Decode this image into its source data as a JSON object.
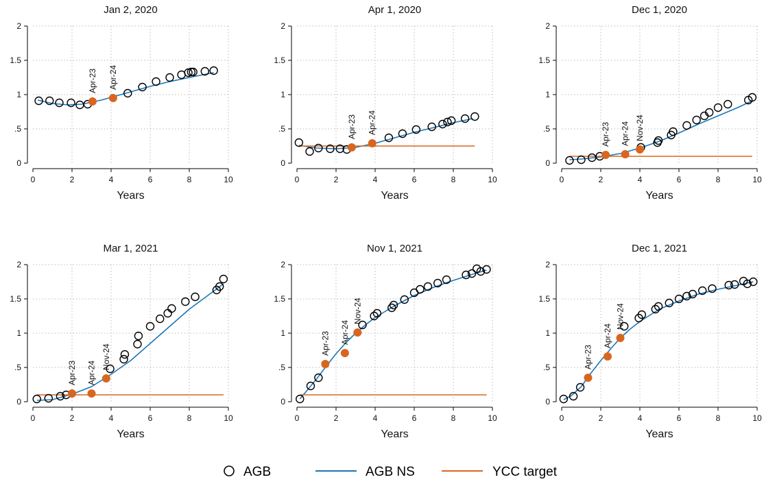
{
  "colors": {
    "agb": "#000000",
    "ns": "#1a76b7",
    "ycc": "#d9661f",
    "ycc_dot": "#d9661f",
    "grid": "#b9b9b9"
  },
  "legend": {
    "placement": "bottom-center",
    "items": [
      {
        "key": "agb",
        "label": "AGB",
        "marker": "hollow-circle"
      },
      {
        "key": "ns",
        "label": "AGB NS",
        "marker": "line"
      },
      {
        "key": "ycc",
        "label": "YCC target",
        "marker": "line"
      }
    ]
  },
  "chart_data": [
    {
      "type": "scatter",
      "title": "Jan 2, 2020",
      "xlabel": "Years",
      "ylabel": "",
      "xlim": [
        0,
        10
      ],
      "ylim": [
        0,
        2
      ],
      "xticks": [
        "0",
        "2",
        "4",
        "6",
        "8",
        "10"
      ],
      "yticks": [
        "0",
        ".5",
        "1",
        "1.5",
        "2"
      ],
      "grid": true,
      "series": [
        {
          "name": "AGB",
          "kind": "hollow-circle",
          "x": [
            0.3,
            0.85,
            1.35,
            1.95,
            2.4,
            2.8,
            4.85,
            5.6,
            6.3,
            7.0,
            7.6,
            7.95,
            8.1,
            8.2,
            8.8,
            9.25
          ],
          "y": [
            0.91,
            0.91,
            0.88,
            0.88,
            0.85,
            0.86,
            1.02,
            1.11,
            1.19,
            1.25,
            1.29,
            1.32,
            1.33,
            1.33,
            1.34,
            1.35
          ]
        },
        {
          "name": "AGB NS",
          "kind": "line",
          "x": [
            0.25,
            1.0,
            1.8,
            2.5,
            3.0,
            3.5,
            4.0,
            5.0,
            6.0,
            7.0,
            8.0,
            9.25
          ],
          "y": [
            0.92,
            0.87,
            0.85,
            0.86,
            0.89,
            0.92,
            0.96,
            1.04,
            1.12,
            1.19,
            1.25,
            1.32
          ]
        },
        {
          "name": "YCC target",
          "kind": "line",
          "x": [],
          "y": []
        },
        {
          "kind": "orange-dot",
          "x": [
            3.05,
            4.1
          ],
          "y": [
            0.9,
            0.95
          ]
        }
      ],
      "annotations": [
        {
          "text": "Apr-23",
          "x": 3.05,
          "y": 0.9
        },
        {
          "text": "Apr-24",
          "x": 4.1,
          "y": 0.95
        }
      ]
    },
    {
      "type": "scatter",
      "title": "Apr 1, 2020",
      "xlabel": "Years",
      "ylabel": "",
      "xlim": [
        0,
        10
      ],
      "ylim": [
        0,
        2
      ],
      "xticks": [
        "0",
        "2",
        "4",
        "6",
        "8",
        "10"
      ],
      "yticks": [
        "0",
        ".5",
        "1",
        "1.5",
        "2"
      ],
      "grid": true,
      "series": [
        {
          "name": "AGB",
          "kind": "hollow-circle",
          "x": [
            0.1,
            0.65,
            1.1,
            1.7,
            2.2,
            2.55,
            4.7,
            5.4,
            6.1,
            6.9,
            7.45,
            7.7,
            7.9,
            8.6,
            9.1
          ],
          "y": [
            0.3,
            0.17,
            0.22,
            0.21,
            0.21,
            0.2,
            0.37,
            0.43,
            0.49,
            0.53,
            0.57,
            0.6,
            0.62,
            0.65,
            0.68
          ]
        },
        {
          "name": "AGB NS",
          "kind": "line",
          "x": [
            0.1,
            1.0,
            2.0,
            3.0,
            4.0,
            5.0,
            6.0,
            7.0,
            8.0,
            9.0
          ],
          "y": [
            0.26,
            0.22,
            0.21,
            0.23,
            0.29,
            0.37,
            0.45,
            0.52,
            0.59,
            0.65
          ]
        },
        {
          "name": "YCC target",
          "kind": "line",
          "x": [
            0.1,
            9.1
          ],
          "y": [
            0.25,
            0.25
          ]
        },
        {
          "kind": "orange-dot",
          "x": [
            2.8,
            3.85
          ],
          "y": [
            0.23,
            0.29
          ]
        }
      ],
      "annotations": [
        {
          "text": "Apr-23",
          "x": 2.8,
          "y": 0.23
        },
        {
          "text": "Apr-24",
          "x": 3.85,
          "y": 0.29
        }
      ]
    },
    {
      "type": "scatter",
      "title": "Dec 1, 2020",
      "xlabel": "Years",
      "ylabel": "",
      "xlim": [
        0,
        10
      ],
      "ylim": [
        0,
        2
      ],
      "xticks": [
        "0",
        "2",
        "4",
        "6",
        "8",
        "10"
      ],
      "yticks": [
        "0",
        ".5",
        "1",
        "1.5",
        "2"
      ],
      "grid": true,
      "series": [
        {
          "name": "AGB",
          "kind": "hollow-circle",
          "x": [
            0.4,
            1.0,
            1.55,
            1.95,
            4.05,
            4.9,
            4.95,
            5.6,
            5.7,
            6.4,
            6.9,
            7.3,
            7.55,
            8.0,
            8.5,
            9.55,
            9.75
          ],
          "y": [
            0.04,
            0.05,
            0.08,
            0.1,
            0.23,
            0.3,
            0.33,
            0.41,
            0.46,
            0.55,
            0.63,
            0.69,
            0.74,
            0.81,
            0.86,
            0.92,
            0.96
          ]
        },
        {
          "name": "AGB NS",
          "kind": "line",
          "x": [
            0.4,
            1.0,
            2.0,
            3.0,
            4.0,
            5.0,
            6.0,
            7.0,
            8.0,
            9.0,
            9.75
          ],
          "y": [
            0.05,
            0.06,
            0.09,
            0.14,
            0.22,
            0.32,
            0.44,
            0.57,
            0.69,
            0.81,
            0.91
          ]
        },
        {
          "name": "YCC target",
          "kind": "line",
          "x": [
            0.4,
            9.75
          ],
          "y": [
            0.1,
            0.1
          ]
        },
        {
          "kind": "orange-dot",
          "x": [
            2.25,
            3.25,
            4.0
          ],
          "y": [
            0.12,
            0.13,
            0.2
          ]
        }
      ],
      "annotations": [
        {
          "text": "Apr-23",
          "x": 2.25,
          "y": 0.12
        },
        {
          "text": "Apr-24",
          "x": 3.25,
          "y": 0.13
        },
        {
          "text": "Nov-24",
          "x": 4.0,
          "y": 0.2
        }
      ]
    },
    {
      "type": "scatter",
      "title": "Mar 1, 2021",
      "xlabel": "Years",
      "ylabel": "",
      "xlim": [
        0,
        10
      ],
      "ylim": [
        0,
        2
      ],
      "xticks": [
        "0",
        "2",
        "4",
        "6",
        "8",
        "10"
      ],
      "yticks": [
        "0",
        ".5",
        "1",
        "1.5",
        "2"
      ],
      "grid": true,
      "series": [
        {
          "name": "AGB",
          "kind": "hollow-circle",
          "x": [
            0.2,
            0.8,
            1.4,
            1.7,
            3.95,
            4.65,
            4.7,
            5.35,
            5.4,
            6.0,
            6.5,
            6.9,
            7.1,
            7.8,
            8.3,
            9.4,
            9.55,
            9.75
          ],
          "y": [
            0.04,
            0.05,
            0.08,
            0.1,
            0.48,
            0.62,
            0.69,
            0.84,
            0.96,
            1.1,
            1.21,
            1.29,
            1.36,
            1.46,
            1.53,
            1.63,
            1.68,
            1.79
          ]
        },
        {
          "name": "AGB NS",
          "kind": "line",
          "x": [
            0.2,
            1.0,
            2.0,
            3.0,
            4.0,
            5.0,
            6.0,
            7.0,
            8.0,
            9.0,
            9.75
          ],
          "y": [
            0.02,
            0.03,
            0.11,
            0.22,
            0.4,
            0.6,
            0.85,
            1.1,
            1.35,
            1.56,
            1.72
          ]
        },
        {
          "name": "YCC target",
          "kind": "line",
          "x": [
            0.2,
            9.75
          ],
          "y": [
            0.1,
            0.1
          ]
        },
        {
          "kind": "orange-dot",
          "x": [
            2.0,
            3.0,
            3.75
          ],
          "y": [
            0.12,
            0.12,
            0.34
          ]
        }
      ],
      "annotations": [
        {
          "text": "Apr-23",
          "x": 2.0,
          "y": 0.12
        },
        {
          "text": "Apr-24",
          "x": 3.0,
          "y": 0.12
        },
        {
          "text": "Nov-24",
          "x": 3.75,
          "y": 0.34
        }
      ]
    },
    {
      "type": "scatter",
      "title": "Nov 1, 2021",
      "xlabel": "Years",
      "ylabel": "",
      "xlim": [
        0,
        10
      ],
      "ylim": [
        0,
        2
      ],
      "xticks": [
        "0",
        "2",
        "4",
        "6",
        "8",
        "10"
      ],
      "yticks": [
        "0",
        ".5",
        "1",
        "1.5",
        "2"
      ],
      "grid": true,
      "series": [
        {
          "name": "AGB",
          "kind": "hollow-circle",
          "x": [
            0.15,
            0.7,
            1.1,
            3.35,
            3.95,
            4.1,
            4.85,
            4.95,
            5.5,
            6.0,
            6.3,
            6.7,
            7.2,
            7.65,
            8.65,
            8.95,
            9.2,
            9.4,
            9.7
          ],
          "y": [
            0.04,
            0.23,
            0.35,
            1.12,
            1.25,
            1.29,
            1.37,
            1.41,
            1.49,
            1.59,
            1.64,
            1.68,
            1.73,
            1.78,
            1.85,
            1.87,
            1.94,
            1.9,
            1.93
          ]
        },
        {
          "name": "AGB NS",
          "kind": "line",
          "x": [
            0.15,
            0.5,
            1.0,
            1.5,
            2.0,
            2.5,
            3.0,
            3.5,
            4.0,
            5.0,
            6.0,
            7.0,
            8.0,
            9.0,
            9.7
          ],
          "y": [
            0.04,
            0.16,
            0.33,
            0.52,
            0.7,
            0.86,
            1.0,
            1.12,
            1.23,
            1.4,
            1.55,
            1.67,
            1.77,
            1.86,
            1.92
          ]
        },
        {
          "name": "YCC target",
          "kind": "line",
          "x": [
            0.15,
            9.7
          ],
          "y": [
            0.1,
            0.1
          ]
        },
        {
          "kind": "orange-dot",
          "x": [
            1.45,
            2.45,
            3.1
          ],
          "y": [
            0.55,
            0.71,
            1.01
          ]
        }
      ],
      "annotations": [
        {
          "text": "Apr-23",
          "x": 1.45,
          "y": 0.55
        },
        {
          "text": "Apr-24",
          "x": 2.45,
          "y": 0.71
        },
        {
          "text": "Nov-24",
          "x": 3.1,
          "y": 1.01
        }
      ]
    },
    {
      "type": "scatter",
      "title": "Dec 1, 2021",
      "xlabel": "Years",
      "ylabel": "",
      "xlim": [
        0,
        10
      ],
      "ylim": [
        0,
        2
      ],
      "xticks": [
        "0",
        "2",
        "4",
        "6",
        "8",
        "10"
      ],
      "yticks": [
        "0",
        ".5",
        "1",
        "1.5",
        "2"
      ],
      "grid": true,
      "series": [
        {
          "name": "AGB",
          "kind": "hollow-circle",
          "x": [
            0.1,
            0.6,
            0.95,
            3.2,
            3.95,
            4.1,
            4.8,
            4.95,
            5.5,
            6.0,
            6.4,
            6.7,
            7.2,
            7.7,
            8.55,
            8.85,
            9.3,
            9.5,
            9.8
          ],
          "y": [
            0.04,
            0.08,
            0.21,
            1.1,
            1.22,
            1.27,
            1.35,
            1.39,
            1.44,
            1.5,
            1.54,
            1.57,
            1.62,
            1.65,
            1.7,
            1.71,
            1.76,
            1.72,
            1.75
          ]
        },
        {
          "name": "AGB NS",
          "kind": "line",
          "x": [
            0.1,
            0.5,
            1.0,
            1.5,
            2.0,
            2.5,
            3.0,
            3.5,
            4.0,
            5.0,
            6.0,
            7.0,
            8.0,
            9.0,
            9.8
          ],
          "y": [
            0.03,
            0.09,
            0.22,
            0.42,
            0.6,
            0.77,
            0.93,
            1.06,
            1.17,
            1.35,
            1.47,
            1.57,
            1.64,
            1.7,
            1.75
          ]
        },
        {
          "name": "YCC target",
          "kind": "line",
          "x": [],
          "y": []
        },
        {
          "kind": "orange-dot",
          "x": [
            1.35,
            2.35,
            3.0
          ],
          "y": [
            0.35,
            0.66,
            0.93
          ]
        }
      ],
      "annotations": [
        {
          "text": "Apr-23",
          "x": 1.35,
          "y": 0.35
        },
        {
          "text": "Apr-24",
          "x": 2.35,
          "y": 0.66
        },
        {
          "text": "Nov-24",
          "x": 3.0,
          "y": 0.93
        }
      ]
    }
  ]
}
